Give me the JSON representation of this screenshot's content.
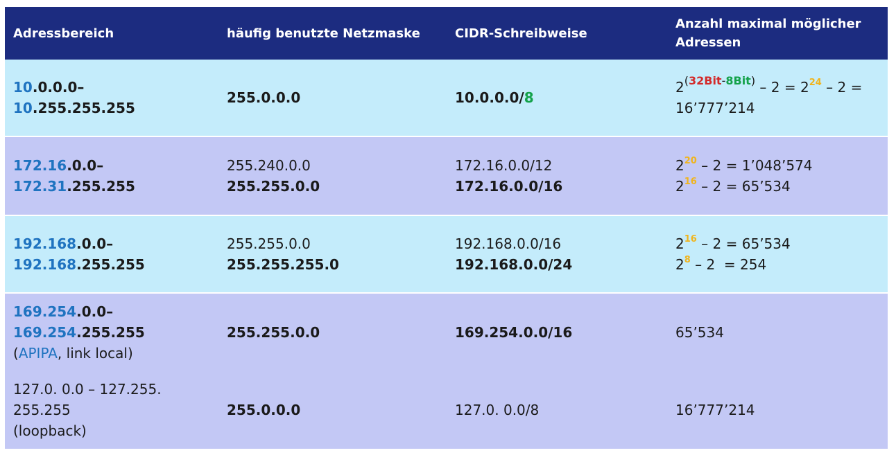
{
  "headers": {
    "range": "Adressbereich",
    "mask": "häufig benutzte Netzmaske",
    "cidr": "CIDR-Schreibweise",
    "count_l1": "Anzahl maximal möglicher",
    "count_l2": "Adressen"
  },
  "rows": [
    {
      "range": {
        "l1_net": "10",
        "l1_rest": ".0.0.0–",
        "l2_net": "10",
        "l2_rest": ".255.255.255"
      },
      "mask": "255.0.0.0",
      "cidr": {
        "prefix": "10.0.0.0/",
        "bits": "8"
      },
      "count": {
        "base": "2",
        "paren_open": "(",
        "bits32": "32Bit",
        "dash": "-",
        "bits8": "8Bit",
        "paren_close": ")",
        "mid": " – 2 = 2",
        "exp": "24",
        "tail": " – 2 =",
        "l2": "16’777’214"
      }
    },
    {
      "range": {
        "l1_net": "172.16",
        "l1_rest": ".0.0–",
        "l2_net": "172.31",
        "l2_rest": ".255.255"
      },
      "mask_l1": "255.240.0.0",
      "mask_l2": "255.255.0.0",
      "cidr_l1": "172.16.0.0/12",
      "cidr_l2": "172.16.0.0/16",
      "count_l1": {
        "base": "2",
        "exp": "20",
        "rest": " – 2 = 1’048’574"
      },
      "count_l2": {
        "base": "2",
        "exp": "16",
        "rest": " – 2 = 65’534"
      }
    },
    {
      "range": {
        "l1_net": "192.168",
        "l1_rest": ".0.0–",
        "l2_net": "192.168",
        "l2_rest": ".255.255"
      },
      "mask_l1": "255.255.0.0",
      "mask_l2": "255.255.255.0",
      "cidr_l1": "192.168.0.0/16",
      "cidr_l2": "192.168.0.0/24",
      "count_l1": {
        "base": "2",
        "exp": "16",
        "rest": " – 2 = 65’534"
      },
      "count_l2": {
        "base": "2",
        "exp": "8",
        "rest": " – 2  = 254"
      }
    },
    {
      "range": {
        "l1_net": "169.254",
        "l1_rest": ".0.0–",
        "l2_net": "169.254",
        "l2_rest": ".255.255",
        "l3_open": "(",
        "l3_apipa": "APIPA",
        "l3_rest": ", link local)"
      },
      "mask": "255.255.0.0",
      "cidr": "169.254.0.0/16",
      "count": "65’534"
    },
    {
      "range": {
        "l1": "127.0. 0.0 – 127.255.",
        "l2": "255.255",
        "l3": "(loopback)"
      },
      "mask": "255.0.0.0",
      "cidr": "127.0. 0.0/8",
      "count": "16’777’214"
    }
  ],
  "colors": {
    "header_bg": "#1c2c80",
    "row_light": "#c4ecfb",
    "row_lavender": "#c3c8f5",
    "net_blue": "#1f73c0",
    "bits_green": "#14a24a",
    "bits_red": "#d32a2a",
    "exp_yellow": "#f0b41c"
  }
}
